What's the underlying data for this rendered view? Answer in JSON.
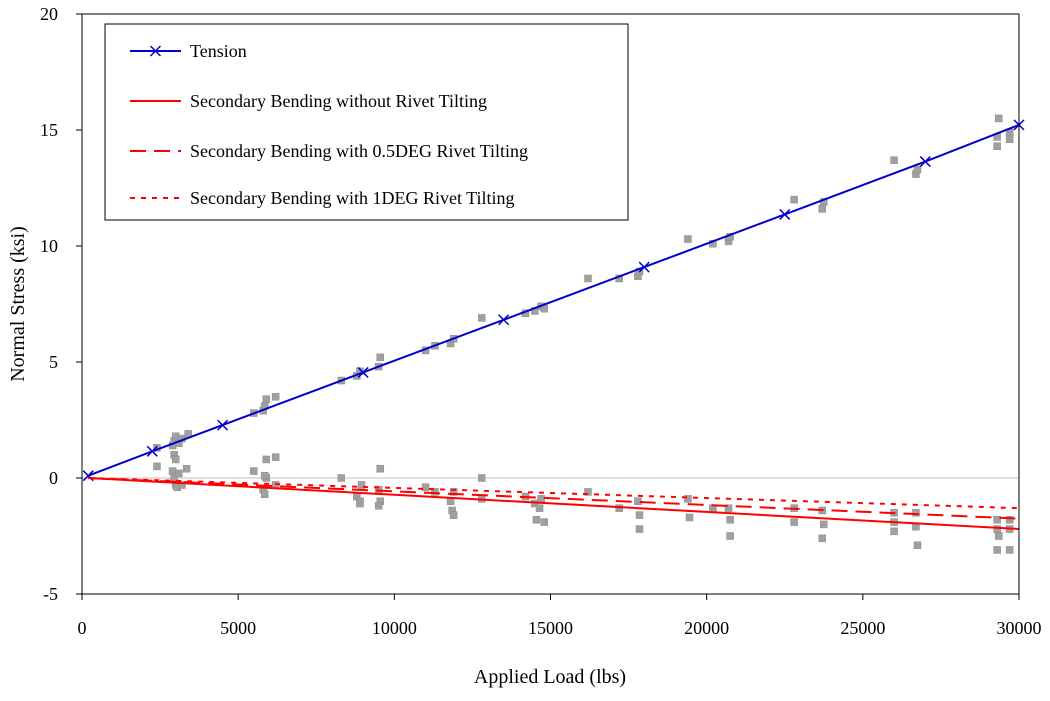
{
  "chart_data": {
    "type": "line",
    "title": "",
    "xlabel": "Applied Load (lbs)",
    "ylabel": "Normal Stress (ksi)",
    "xlim": [
      0,
      30000
    ],
    "ylim": [
      -5,
      20
    ],
    "x_ticks": [
      0,
      5000,
      10000,
      15000,
      20000,
      25000,
      30000
    ],
    "y_ticks": [
      -5,
      0,
      5,
      10,
      15,
      20
    ],
    "x_tick_labels": [
      "0",
      "5000",
      "10000",
      "15000",
      "20000",
      "25000",
      "30000"
    ],
    "y_tick_labels": [
      "-5",
      "0",
      "5",
      "10",
      "15",
      "20"
    ],
    "grid": false,
    "zero_line": true,
    "legend_position": "top-left",
    "series": [
      {
        "name": "Tension",
        "color": "#0000cc",
        "style": "solid",
        "marker": "x",
        "x": [
          200,
          2250,
          4500,
          9000,
          13500,
          18000,
          22500,
          27000,
          30000
        ],
        "y": [
          0.1,
          1.15,
          2.28,
          4.55,
          6.82,
          9.09,
          11.36,
          13.64,
          15.22
        ]
      },
      {
        "name": "Secondary Bending without Rivet Tilting",
        "color": "#ff0000",
        "style": "solid",
        "marker": "none",
        "x": [
          200,
          30000
        ],
        "y": [
          0.0,
          -2.2
        ]
      },
      {
        "name": "Secondary Bending with 0.5DEG Rivet Tilting",
        "color": "#ff0000",
        "style": "dashed",
        "marker": "none",
        "x": [
          200,
          30000
        ],
        "y": [
          0.0,
          -1.75
        ]
      },
      {
        "name": "Secondary Bending with 1DEG Rivet Tilting",
        "color": "#ff0000",
        "style": "dotted",
        "marker": "none",
        "x": [
          200,
          30000
        ],
        "y": [
          0.0,
          -1.3
        ]
      }
    ],
    "experimental_points": {
      "color": "#a0a0a0",
      "marker": "grey-square",
      "points": [
        [
          2900,
          1.4
        ],
        [
          2950,
          1.6
        ],
        [
          3000,
          1.8
        ],
        [
          3100,
          1.5
        ],
        [
          3200,
          1.7
        ],
        [
          3400,
          1.9
        ],
        [
          2400,
          1.3
        ],
        [
          2900,
          0.3
        ],
        [
          2950,
          0.0
        ],
        [
          3000,
          -0.3
        ],
        [
          3050,
          -0.4
        ],
        [
          3100,
          0.2
        ],
        [
          3200,
          -0.3
        ],
        [
          3350,
          0.4
        ],
        [
          2400,
          0.5
        ],
        [
          2950,
          1.0
        ],
        [
          3000,
          0.8
        ],
        [
          5500,
          2.8
        ],
        [
          5800,
          2.9
        ],
        [
          5850,
          3.1
        ],
        [
          5900,
          3.4
        ],
        [
          6200,
          3.5
        ],
        [
          5500,
          0.3
        ],
        [
          5800,
          -0.5
        ],
        [
          5850,
          -0.7
        ],
        [
          5900,
          0.0
        ],
        [
          5900,
          0.8
        ],
        [
          6200,
          0.9
        ],
        [
          6200,
          -0.3
        ],
        [
          5850,
          0.1
        ],
        [
          8300,
          4.2
        ],
        [
          8800,
          4.4
        ],
        [
          8900,
          4.6
        ],
        [
          9500,
          4.8
        ],
        [
          9550,
          5.2
        ],
        [
          8300,
          0.0
        ],
        [
          8800,
          -0.8
        ],
        [
          8900,
          -1.0
        ],
        [
          8900,
          -1.1
        ],
        [
          9500,
          -0.5
        ],
        [
          9550,
          -1.0
        ],
        [
          9550,
          0.4
        ],
        [
          9500,
          -1.2
        ],
        [
          8950,
          -0.3
        ],
        [
          11000,
          5.5
        ],
        [
          11300,
          5.7
        ],
        [
          11800,
          5.8
        ],
        [
          11900,
          6.0
        ],
        [
          12800,
          6.9
        ],
        [
          11000,
          -0.4
        ],
        [
          11300,
          -0.6
        ],
        [
          11800,
          -1.0
        ],
        [
          11850,
          -1.4
        ],
        [
          11900,
          -1.6
        ],
        [
          12800,
          -0.9
        ],
        [
          12800,
          0.0
        ],
        [
          11900,
          -0.6
        ],
        [
          14200,
          7.1
        ],
        [
          14500,
          7.2
        ],
        [
          14700,
          7.4
        ],
        [
          14800,
          7.3
        ],
        [
          14200,
          -0.8
        ],
        [
          14500,
          -1.1
        ],
        [
          14550,
          -1.8
        ],
        [
          14700,
          -0.9
        ],
        [
          14800,
          -1.9
        ],
        [
          14650,
          -1.3
        ],
        [
          16200,
          8.6
        ],
        [
          17200,
          8.6
        ],
        [
          17800,
          8.7
        ],
        [
          17850,
          8.9
        ],
        [
          16200,
          -0.6
        ],
        [
          17200,
          -1.3
        ],
        [
          17800,
          -1.0
        ],
        [
          17850,
          -2.2
        ],
        [
          17850,
          -1.6
        ],
        [
          19400,
          10.3
        ],
        [
          20200,
          10.1
        ],
        [
          20700,
          10.2
        ],
        [
          20750,
          10.4
        ],
        [
          19400,
          -0.9
        ],
        [
          19450,
          -1.7
        ],
        [
          20200,
          -1.3
        ],
        [
          20700,
          -1.3
        ],
        [
          20750,
          -2.5
        ],
        [
          20750,
          -1.8
        ],
        [
          22800,
          12.0
        ],
        [
          23700,
          11.6
        ],
        [
          23750,
          11.9
        ],
        [
          22800,
          -1.3
        ],
        [
          22800,
          -1.9
        ],
        [
          23700,
          -1.4
        ],
        [
          23700,
          -2.6
        ],
        [
          23750,
          -2.0
        ],
        [
          26000,
          13.7
        ],
        [
          26700,
          13.1
        ],
        [
          26750,
          13.3
        ],
        [
          26000,
          -1.5
        ],
        [
          26000,
          -1.9
        ],
        [
          26000,
          -2.3
        ],
        [
          26700,
          -1.5
        ],
        [
          26700,
          -2.1
        ],
        [
          26750,
          -2.9
        ],
        [
          29300,
          14.3
        ],
        [
          29300,
          14.7
        ],
        [
          29350,
          15.5
        ],
        [
          29700,
          14.6
        ],
        [
          29700,
          14.9
        ],
        [
          29300,
          -1.8
        ],
        [
          29300,
          -2.2
        ],
        [
          29350,
          -2.5
        ],
        [
          29300,
          -3.1
        ],
        [
          29700,
          -1.8
        ],
        [
          29700,
          -2.2
        ],
        [
          29700,
          -3.1
        ]
      ]
    }
  },
  "colors": {
    "tension": "#0000cc",
    "bending": "#ff0000",
    "experimental": "#a0a0a0",
    "zero_line": "#c0c0c0"
  }
}
